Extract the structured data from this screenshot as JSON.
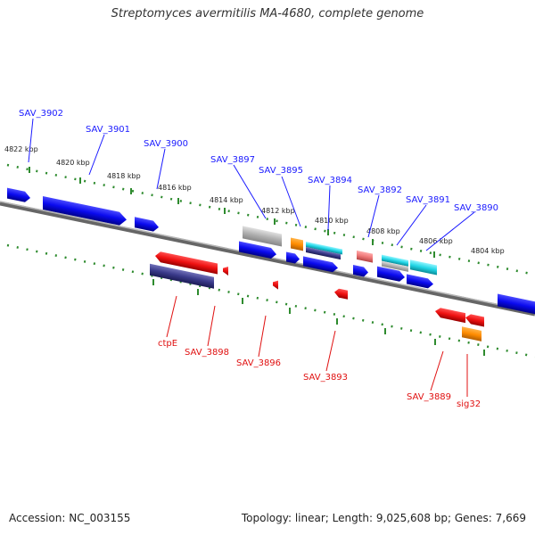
{
  "title": "Streptomyces avermitilis MA-4680, complete genome",
  "footer": {
    "accession": "Accession: NC_003155",
    "topology": "Topology: linear; Length: 9,025,608 bp; Genes: 7,669"
  },
  "colors": {
    "background": "#ffffff",
    "genome_line": "#888888",
    "tick_dots": "#2e8b2e",
    "forward_label": "#1a1aff",
    "reverse_label": "#e01010",
    "gene_blue": "#0a0aee",
    "gene_red": "#ee1111",
    "gene_navy": "#3a3a8a",
    "gene_gray": "#b0b0b0",
    "gene_orange": "#ff8c00",
    "gene_cyan": "#22d6e6",
    "gene_pink": "#ee7777"
  },
  "scale_labels": [
    "4822 kbp",
    "4820 kbp",
    "4818 kbp",
    "4816 kbp",
    "4814 kbp",
    "4812 kbp",
    "4810 kbp",
    "4808 kbp",
    "4806 kbp",
    "4804 kbp"
  ],
  "forward_genes": [
    "SAV_3902",
    "SAV_3901",
    "SAV_3900",
    "SAV_3897",
    "SAV_3895",
    "SAV_3894",
    "SAV_3892",
    "SAV_3891",
    "SAV_3890"
  ],
  "reverse_genes": [
    "ctpE",
    "SAV_3898",
    "SAV_3896",
    "SAV_3893",
    "SAV_3889",
    "sig32"
  ]
}
